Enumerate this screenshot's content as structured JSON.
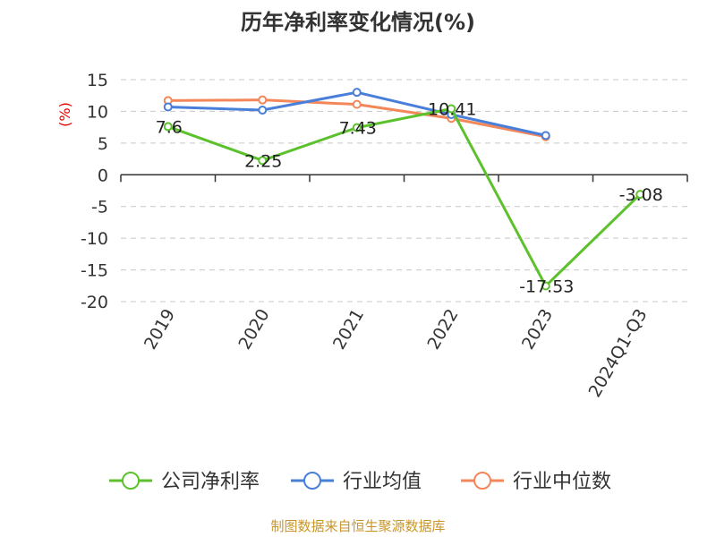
{
  "chart_data": {
    "type": "line",
    "title": "历年净利率变化情况(%)",
    "ylabel": "(%)",
    "categories": [
      "2019",
      "2020",
      "2021",
      "2022",
      "2023",
      "2024Q1-Q3"
    ],
    "yticks": [
      "15",
      "10",
      "5",
      "0",
      "-5",
      "-10",
      "-15",
      "-20"
    ],
    "ylim": [
      -20,
      15
    ],
    "grid": true,
    "legend_position": "bottom",
    "series": [
      {
        "name": "公司净利率",
        "color": "#5cc12c",
        "values": [
          7.6,
          2.25,
          7.43,
          10.41,
          -17.53,
          -3.08
        ],
        "labels": [
          "7.6",
          "2.25",
          "7.43",
          "10.41",
          "-17.53",
          "-3.08"
        ]
      },
      {
        "name": "行业均值",
        "color": "#4a7fd9",
        "values": [
          10.7,
          10.2,
          13.0,
          9.5,
          6.2,
          null
        ]
      },
      {
        "name": "行业中位数",
        "color": "#f4875a",
        "values": [
          11.7,
          11.8,
          11.1,
          8.9,
          6.0,
          null
        ]
      }
    ]
  },
  "source": "制图数据来自恒生聚源数据库"
}
